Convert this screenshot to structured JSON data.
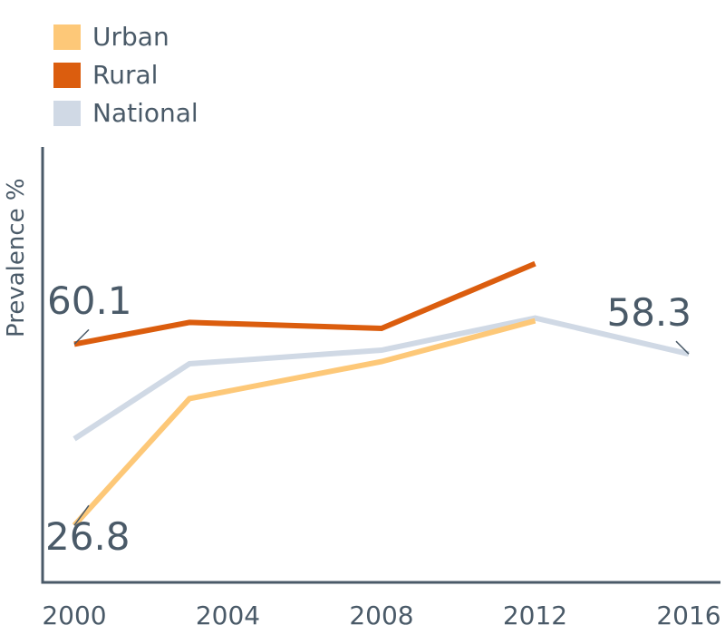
{
  "chart_data": {
    "type": "line",
    "title": "",
    "xlabel": "",
    "ylabel": "Prevalence %",
    "x_ticks": [
      "2000",
      "2004",
      "2008",
      "2012",
      "2016"
    ],
    "xlim": [
      2000,
      2016
    ],
    "ylim": [
      20,
      100
    ],
    "grid": false,
    "legend_position": "top-left",
    "series": [
      {
        "name": "Urban",
        "color": "#fdc878",
        "points": [
          [
            2000,
            26.8
          ],
          [
            2003,
            50.1
          ],
          [
            2008,
            56.9
          ],
          [
            2012,
            64.4
          ]
        ]
      },
      {
        "name": "Rural",
        "color": "#db5d0e",
        "points": [
          [
            2000,
            60.1
          ],
          [
            2003,
            64.1
          ],
          [
            2008,
            63.0
          ],
          [
            2012,
            74.9
          ]
        ]
      },
      {
        "name": "National",
        "color": "#d0d9e5",
        "points": [
          [
            2000,
            42.7
          ],
          [
            2003,
            56.5
          ],
          [
            2008,
            59.0
          ],
          [
            2012,
            64.9
          ],
          [
            2016,
            58.3
          ]
        ]
      }
    ],
    "annotations": [
      {
        "text": "60.1",
        "series": "Rural",
        "x": 2000,
        "y": 60.1
      },
      {
        "text": "26.8",
        "series": "Urban",
        "x": 2000,
        "y": 26.8
      },
      {
        "text": "58.3",
        "series": "National",
        "x": 2016,
        "y": 58.3
      }
    ]
  }
}
